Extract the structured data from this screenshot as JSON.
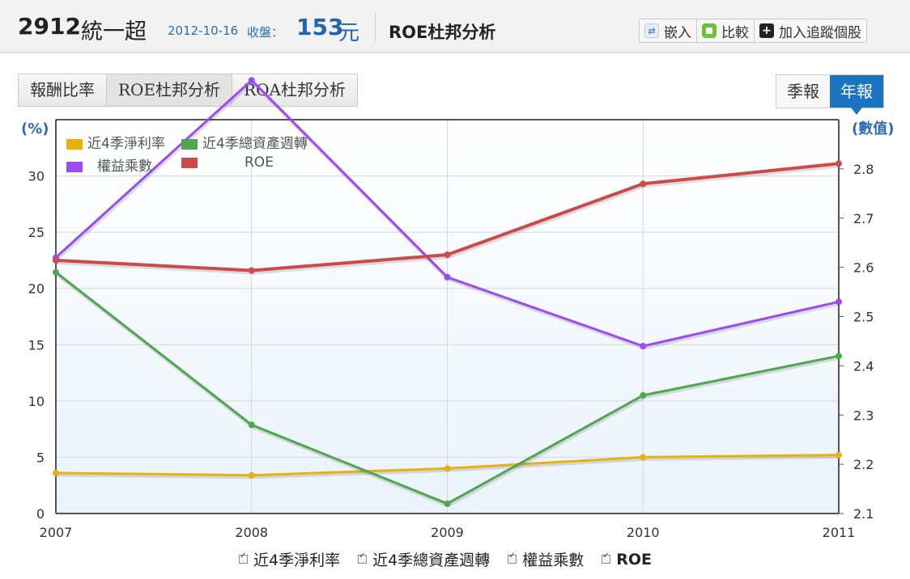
{
  "header": {
    "code": "2912",
    "name": "統一超",
    "date": "2012-10-16",
    "close_label": "收盤：",
    "price": "153",
    "unit": "元",
    "title": "ROE杜邦分析"
  },
  "toolbar": {
    "embed": "嵌入",
    "compare": "比較",
    "add": "加入追蹤個股"
  },
  "tabs": [
    "報酬比率",
    "ROE杜邦分析",
    "ROA杜邦分析"
  ],
  "period_tabs": [
    "季報",
    "年報"
  ],
  "chart_data": {
    "type": "line",
    "x": [
      "2007",
      "2008",
      "2009",
      "2010",
      "2011"
    ],
    "y_left": {
      "label": "(%)",
      "ticks": [
        "0",
        "5",
        "10",
        "15",
        "20",
        "25",
        "30"
      ],
      "range": [
        0,
        35
      ]
    },
    "y_right": {
      "label": "(數值)",
      "ticks": [
        "2.1",
        "2.2",
        "2.3",
        "2.4",
        "2.5",
        "2.6",
        "2.7",
        "2.8"
      ],
      "range": [
        2.1,
        2.9
      ]
    },
    "grid": true,
    "series": [
      {
        "name": "近4季淨利率",
        "axis": "left",
        "color": "#e8b10c",
        "values": [
          3.6,
          3.4,
          4.0,
          5.0,
          5.2
        ]
      },
      {
        "name": "近4季總資產週轉",
        "axis": "right",
        "color": "#4ea64e",
        "values": [
          2.59,
          2.28,
          2.12,
          2.34,
          2.42
        ]
      },
      {
        "name": "權益乘數",
        "axis": "right",
        "color": "#9b4cf0",
        "values": [
          2.62,
          2.98,
          2.58,
          2.44,
          2.53
        ]
      },
      {
        "name": "ROE",
        "axis": "left",
        "color": "#cc4a4a",
        "values": [
          22.5,
          21.6,
          23.0,
          29.3,
          31.1
        ]
      }
    ]
  }
}
